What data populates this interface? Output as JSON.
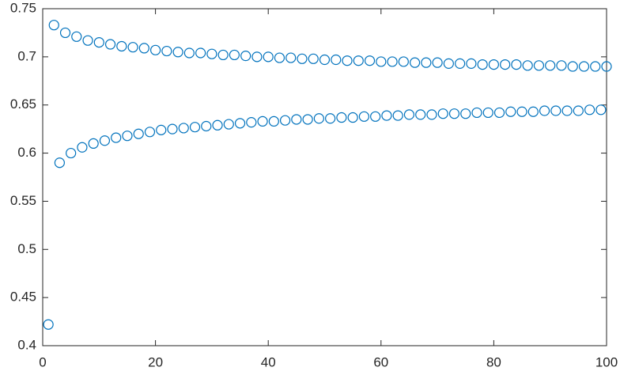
{
  "chart_data": {
    "type": "scatter",
    "color": "#0072BD",
    "marker": "circle-open",
    "x": [
      1,
      2,
      3,
      4,
      5,
      6,
      7,
      8,
      9,
      10,
      11,
      12,
      13,
      14,
      15,
      16,
      17,
      18,
      19,
      20,
      21,
      22,
      23,
      24,
      25,
      26,
      27,
      28,
      29,
      30,
      31,
      32,
      33,
      34,
      35,
      36,
      37,
      38,
      39,
      40,
      41,
      42,
      43,
      44,
      45,
      46,
      47,
      48,
      49,
      50,
      51,
      52,
      53,
      54,
      55,
      56,
      57,
      58,
      59,
      60,
      61,
      62,
      63,
      64,
      65,
      66,
      67,
      68,
      69,
      70,
      71,
      72,
      73,
      74,
      75,
      76,
      77,
      78,
      79,
      80,
      81,
      82,
      83,
      84,
      85,
      86,
      87,
      88,
      89,
      90,
      91,
      92,
      93,
      94,
      95,
      96,
      97,
      98,
      99,
      100
    ],
    "values": [
      0.422,
      0.733,
      0.59,
      0.725,
      0.6,
      0.721,
      0.606,
      0.717,
      0.61,
      0.715,
      0.613,
      0.713,
      0.616,
      0.711,
      0.618,
      0.71,
      0.62,
      0.709,
      0.622,
      0.707,
      0.624,
      0.706,
      0.625,
      0.705,
      0.626,
      0.704,
      0.627,
      0.704,
      0.628,
      0.703,
      0.629,
      0.702,
      0.63,
      0.702,
      0.631,
      0.701,
      0.632,
      0.7,
      0.633,
      0.7,
      0.633,
      0.699,
      0.634,
      0.699,
      0.635,
      0.698,
      0.635,
      0.698,
      0.636,
      0.697,
      0.636,
      0.697,
      0.637,
      0.696,
      0.637,
      0.696,
      0.638,
      0.696,
      0.638,
      0.695,
      0.639,
      0.695,
      0.639,
      0.695,
      0.64,
      0.694,
      0.64,
      0.694,
      0.64,
      0.694,
      0.641,
      0.693,
      0.641,
      0.693,
      0.641,
      0.693,
      0.642,
      0.692,
      0.642,
      0.692,
      0.642,
      0.692,
      0.643,
      0.692,
      0.643,
      0.691,
      0.643,
      0.691,
      0.644,
      0.691,
      0.644,
      0.691,
      0.644,
      0.69,
      0.644,
      0.69,
      0.645,
      0.69,
      0.645,
      0.69
    ],
    "xlim": [
      0,
      100
    ],
    "xticks": [
      0,
      20,
      40,
      60,
      80,
      100
    ],
    "ylim": [
      0.4,
      0.75
    ],
    "yticks": [
      0.4,
      0.45,
      0.5,
      0.55,
      0.6,
      0.65,
      0.7,
      0.75
    ],
    "grid": false
  }
}
